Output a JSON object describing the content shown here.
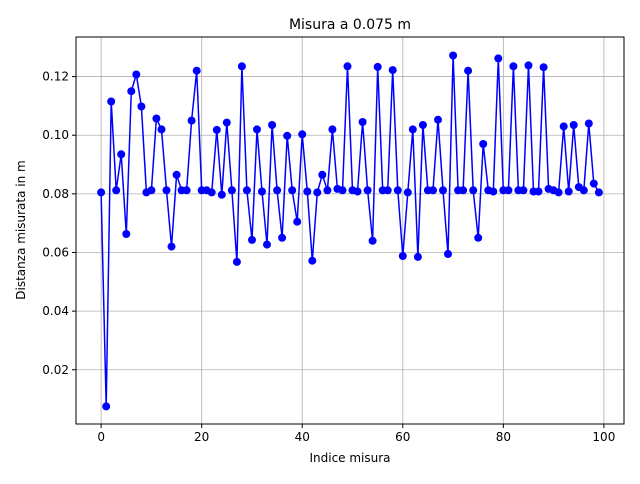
{
  "chart_data": {
    "type": "line",
    "title": "Misura a 0.075 m",
    "xlabel": "Indice misura",
    "ylabel": "Distanza misurata in m",
    "xlim": [
      -5,
      104
    ],
    "ylim": [
      0.0015,
      0.1335
    ],
    "xticks": [
      0,
      20,
      40,
      60,
      80,
      100
    ],
    "xtick_labels": [
      "0",
      "20",
      "40",
      "60",
      "80",
      "100"
    ],
    "yticks": [
      0.02,
      0.04,
      0.06,
      0.08,
      0.1,
      0.12
    ],
    "ytick_labels": [
      "0.02",
      "0.04",
      "0.06",
      "0.08",
      "0.10",
      "0.12"
    ],
    "grid": true,
    "color": "#0000ff",
    "marker": "circle",
    "series": [
      {
        "x": [
          0,
          1,
          2,
          3,
          4,
          5,
          6,
          7,
          8,
          9,
          10,
          11,
          12,
          13,
          14,
          15,
          16,
          17,
          18,
          19,
          20,
          21,
          22,
          23,
          24,
          25,
          26,
          27,
          28,
          29,
          30,
          31,
          32,
          33,
          34,
          35,
          36,
          37,
          38,
          39,
          40,
          41,
          42,
          43,
          44,
          45,
          46,
          47,
          48,
          49,
          50,
          51,
          52,
          53,
          54,
          55,
          56,
          57,
          58,
          59,
          60,
          61,
          62,
          63,
          64,
          65,
          66,
          67,
          68,
          69,
          70,
          71,
          72,
          73,
          74,
          75,
          76,
          77,
          78,
          79,
          80,
          81,
          82,
          83,
          84,
          85,
          86,
          87,
          88,
          89,
          90,
          91,
          92,
          93,
          94,
          95,
          96,
          97,
          98,
          99
        ],
        "y": [
          0.0805,
          0.0075,
          0.1115,
          0.0812,
          0.0935,
          0.0663,
          0.115,
          0.1207,
          0.1098,
          0.0805,
          0.0812,
          0.1057,
          0.102,
          0.0812,
          0.062,
          0.0865,
          0.0812,
          0.0812,
          0.105,
          0.122,
          0.0812,
          0.0812,
          0.0805,
          0.1018,
          0.0797,
          0.1043,
          0.0812,
          0.0568,
          0.1235,
          0.0812,
          0.0643,
          0.102,
          0.0808,
          0.0627,
          0.1035,
          0.0812,
          0.065,
          0.0998,
          0.0812,
          0.0705,
          0.1003,
          0.0808,
          0.0572,
          0.0805,
          0.0865,
          0.0812,
          0.102,
          0.0817,
          0.0812,
          0.1235,
          0.0812,
          0.0808,
          0.1045,
          0.0812,
          0.064,
          0.1233,
          0.0812,
          0.0812,
          0.1222,
          0.0812,
          0.0588,
          0.0805,
          0.102,
          0.0585,
          0.1035,
          0.0812,
          0.0812,
          0.1053,
          0.0812,
          0.0595,
          0.1272,
          0.0812,
          0.0812,
          0.122,
          0.0812,
          0.065,
          0.097,
          0.0812,
          0.0808,
          0.1262,
          0.0812,
          0.0812,
          0.1235,
          0.0812,
          0.0812,
          0.1238,
          0.0808,
          0.0808,
          0.1232,
          0.0817,
          0.0812,
          0.0805,
          0.103,
          0.0808,
          0.1035,
          0.0823,
          0.0812,
          0.104,
          0.0835,
          0.0805
        ]
      }
    ]
  }
}
